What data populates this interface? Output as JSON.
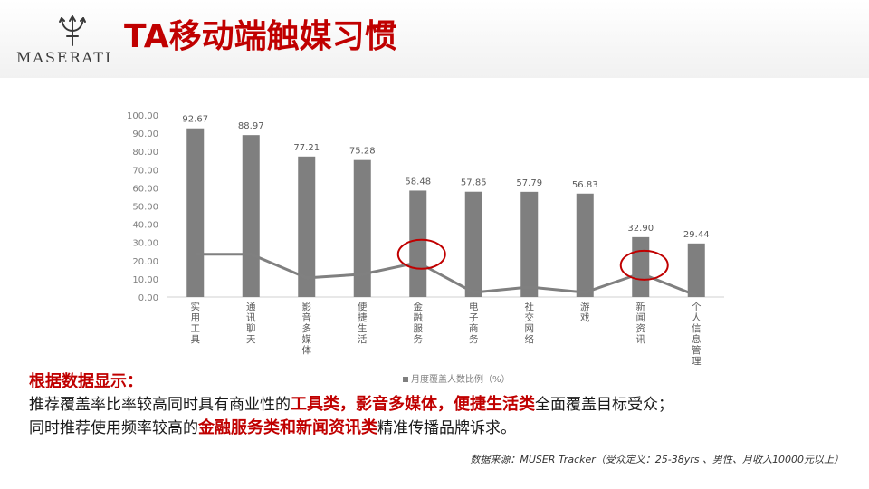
{
  "brand": {
    "wordmark": "MASERATI",
    "logo_icon": "trident-icon"
  },
  "page": {
    "title": "TA移动端触媒习惯"
  },
  "chart_data": {
    "type": "bar",
    "categories": [
      "实用工具",
      "通讯聊天",
      "影音多媒体",
      "便捷生活",
      "金融服务",
      "电子商务",
      "社交网络",
      "游戏",
      "新闻资讯",
      "个人信息管理"
    ],
    "series": [
      {
        "name": "月度覆盖人数比例（%）",
        "type": "bar",
        "color": "#7f7f7f",
        "values": [
          92.67,
          88.97,
          77.21,
          75.28,
          58.48,
          57.85,
          57.79,
          56.83,
          32.9,
          29.44
        ],
        "value_labels": [
          "92.67",
          "88.97",
          "77.21",
          "75.28",
          "58.48",
          "57.85",
          "57.79",
          "56.83",
          "32.90",
          "29.44"
        ]
      },
      {
        "type": "line",
        "color": "#808080",
        "values": [
          23.5,
          23.5,
          10.5,
          12.5,
          19,
          2.5,
          5.5,
          2.5,
          13,
          0.8
        ]
      }
    ],
    "y_ticks": [
      "100.00",
      "90.00",
      "80.00",
      "70.00",
      "60.00",
      "50.00",
      "40.00",
      "30.00",
      "20.00",
      "10.00",
      "0.00"
    ],
    "ylim": [
      0,
      100
    ],
    "legend": {
      "position": "bottom",
      "label": "月度覆盖人数比例（%）"
    },
    "highlighted_categories": [
      "金融服务",
      "新闻资讯"
    ],
    "highlight_color": "#c00000"
  },
  "conclusion": {
    "heading": "根据数据显示：",
    "line1_prefix": "推荐覆盖率比率较高同时具有商业性的",
    "line1_highlight": "工具类，影音多媒体，便捷生活类",
    "line1_suffix": "全面覆盖目标受众；",
    "line2_prefix": "同时推荐使用频率较高的",
    "line2_highlight": "金融服务类和新闻资讯类",
    "line2_suffix": "精准传播品牌诉求。"
  },
  "source_note": "数据来源：MUSER Tracker（受众定义：25-38yrs 、男性、月收入10000元以上）",
  "colors": {
    "accent": "#c00000",
    "bar": "#7f7f7f",
    "text": "#1a1a1a"
  }
}
